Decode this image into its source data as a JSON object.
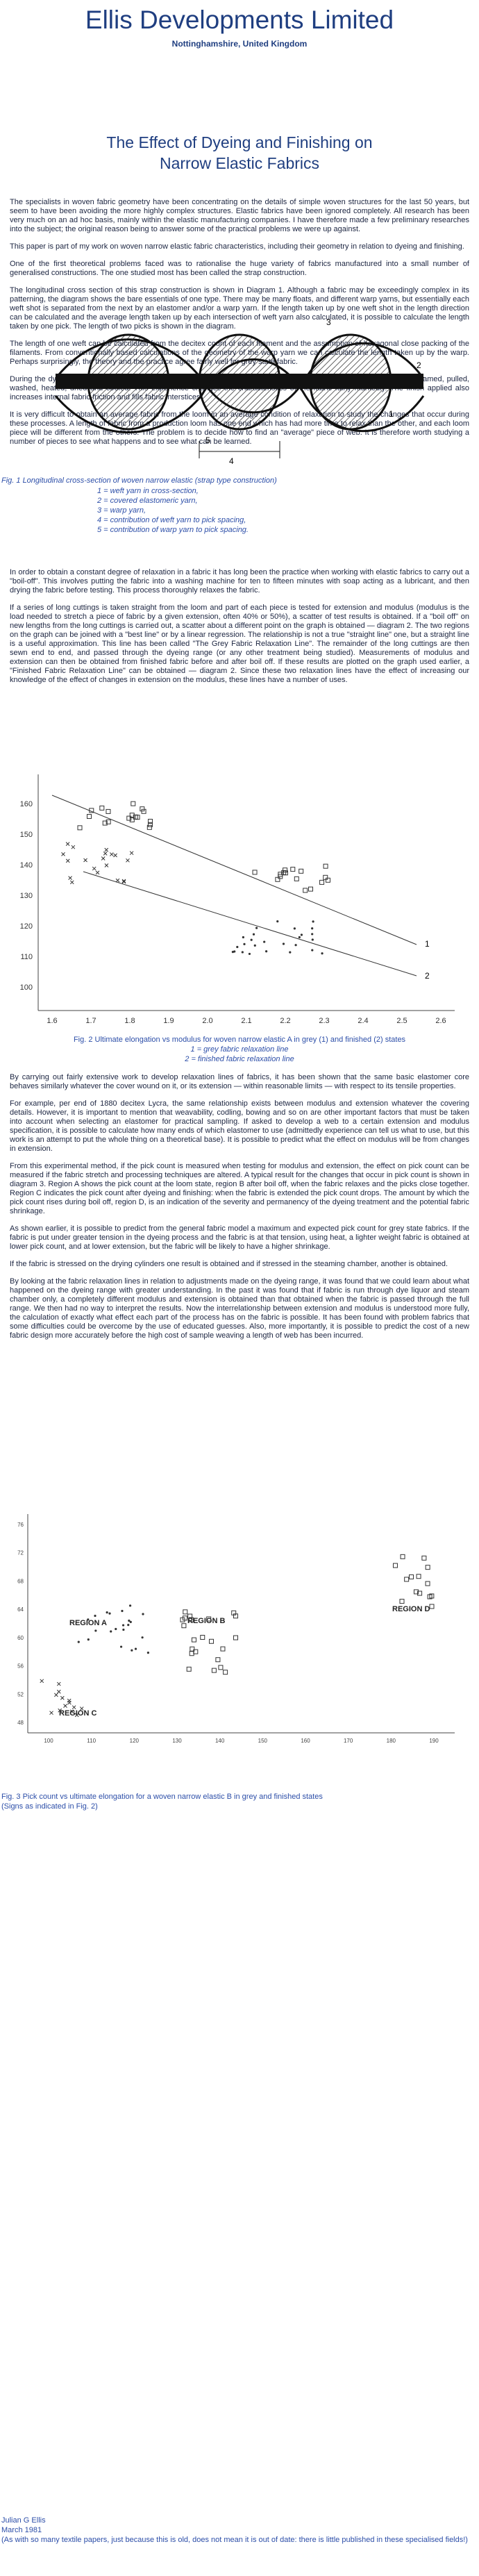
{
  "header": {
    "title": "Ellis Developments Limited",
    "subtitle": "Nottinghamshire, United Kingdom"
  },
  "paper_title": [
    "The Effect of Dyeing and Finishing on",
    "Narrow Elastic Fabrics"
  ],
  "sections": [
    [
      "The specialists in woven fabric geometry have been concentrating on the details of simple woven structures for the last 50 years, but seem to have been avoiding the more highly complex structures. Elastic fabrics have been ignored completely. All research has been very much on an ad hoc basis, mainly within the elastic manufacturing companies. I have therefore made a few preliminary researches into the subject; the original reason being to answer some of the practical problems we were up against.",
      "This paper is part of my work on woven narrow elastic fabric characteristics, including their geometry in relation to dyeing and finishing.",
      "One of the first theoretical problems faced was to rationalise the huge variety of fabrics manufactured into a small number of generalised constructions. The one studied most has been called the strap construction.",
      "The longitudinal cross section of this strap construction is shown in Diagram 1. Although a fabric may be exceedingly complex in its patterning, the diagram shows the bare essentials of one type. There may be many floats, and different warp yarns, but essentially each weft shot is separated from the next by an elastomer and/or a warp yarn. If the length taken up by one weft shot in the length direction can be calculated and the average length taken up by each intersection of weft yarn also calculated, it is possible to calculate the length taken by one pick. The length of two picks is shown in the diagram.",
      "The length of one weft can be calculated from the decitex count of each filament and the assumption of hexagonal close packing of the filaments. From conventionally based calculations of the geometry of the warp yarn we can calculate the length taken up by the warp. Perhaps surprisingly, the theory and the practice agree fairly well for grey state fabric.",
      "During the dyeing and finishing process the fabric is subjected to fairly severe processing conditions. It is squeezed, steamed, pulled, washed, heated, dried and cooled. This experience changes the characteristics of the fabric fairly markedly. The finish applied also increases internal fabric friction and fills fabric interstices.",
      "It is very difficult to obtain an average fabric from the loom in an average condition of relaxation to study the changes that occur during these processes. A length of fabric from a production loom has one end which has had more time to relax than the other, and each loom piece will be different from the others. The problem is to decide how to find an \"average\" piece of web. It is therefore worth studying a number of pieces to see what happens and to see what can be learned."
    ],
    [
      "In order to obtain a constant degree of relaxation in a fabric it has long been the practice when working with elastic fabrics to carry out a \"boil-off\". This involves putting the fabric into a washing machine for ten to fifteen minutes with soap acting as a lubricant, and then drying the fabric before testing. This process thoroughly relaxes the fabric.",
      "If a series of long cuttings is taken straight from the loom and part of each piece is tested for extension and modulus (modulus is the load needed to stretch a piece of fabric by a given extension, often 40% or 50%), a scatter of test results is obtained. If a \"boil off\" on new lengths from the long cuttings is carried out, a scatter about a different point on the graph is obtained — diagram 2. The two regions on the graph can be joined with a \"best line\" or by a linear regression. The relationship is not a true \"straight line\" one, but a straight line is a useful approximation. This line has been called \"The Grey Fabric Relaxation Line\". The remainder of the long cuttings are then sewn end to end, and passed through the dyeing range (or any other treatment being studied). Measurements of modulus and extension can then be obtained from finished fabric before and after boil off. If these results are plotted on the graph used earlier, a \"Finished Fabric Relaxation Line\" can be obtained — diagram 2. Since these two relaxation lines have the effect of increasing our knowledge of the effect of changes in extension on the modulus, these lines have a number of uses."
    ],
    [
      "By carrying out fairly extensive work to develop relaxation lines of fabrics, it has been shown that the same basic elastomer core behaves similarly whatever the cover wound on it, or its extension — within reasonable limits — with respect to its tensile properties.",
      "For example, per end of 1880 decitex Lycra, the same relationship exists between modulus and extension whatever the covering details. However, it is important to mention that weavability, codling, bowing and so on are other important factors that must be taken into account when selecting an elastomer for practical sampling. If asked to develop a web to a certain extension and modulus specification, it is possible to calculate how many ends of which elastomer to use (admittedly experience can tell us what to use, but this work is an attempt to put the whole thing on a theoretical base). It is possible to predict what the effect on modulus will be from changes in extension.",
      "From this experimental method, if the pick count is measured when testing for modulus and extension, the effect on pick count can be measured if the fabric stretch and processing techniques are altered. A typical result for the changes that occur in pick count is shown in diagram 3. Region A shows the pick count at the loom state, region B after boil off, when the fabric relaxes and the picks close together. Region C indicates the pick count after dyeing and finishing: when the fabric is extended the pick count drops. The amount by which the pick count rises during boil off, region D, is an indication of the severity and permanency of the dyeing treatment and the potential fabric shrinkage.",
      "As shown earlier, it is possible to predict from the general fabric model a maximum and expected pick count for grey state fabrics. If the fabric is put under greater tension in the dyeing process and the fabric is at that tension, using heat, a lighter weight fabric is obtained at lower pick count, and at lower extension, but the fabric will be likely to have a higher shrinkage.",
      "If the fabric is stressed on the drying cylinders one result is obtained and if stressed in the steaming chamber, another is obtained.",
      "By looking at the fabric relaxation lines in relation to adjustments made on the dyeing range, it was found that we could learn about what happened on the dyeing range with greater understanding. In the past it was found that if fabric is run through dye liquor and steam chamber only, a completely different modulus and extension is obtained than that obtained when the fabric is passed through the full range. We then had no way to interpret the results. Now the interrelationship between extension and modulus is understood more fully, the calculation of exactly what effect each part of the process has on the fabric is possible. It has been found with problem fabrics that some difficulties could be overcome by the use of educated guesses. Also, more importantly, it is possible to predict the cost of a new fabric design more accurately before the high cost of sample weaving a length of web has been incurred."
    ]
  ],
  "figure1": {
    "labels": [
      "1",
      "2",
      "3",
      "4",
      "5"
    ],
    "caption": "Fig. 1 Longitudinal cross-section of woven narrow elastic (strap type construction)",
    "legend": [
      "1 = weft yarn in cross-section,",
      "2 = covered elastomeric yarn,",
      "3 = warp yarn,",
      "4 = contribution of weft yarn to pick spacing,",
      "5 = contribution of warp yarn to pick spacing."
    ]
  },
  "figure2": {
    "yticks": [
      "160",
      "150",
      "140",
      "130",
      "120",
      "110",
      "100"
    ],
    "xticks": [
      "1.6",
      "1.7",
      "1.8",
      "1.9",
      "2.0",
      "2.1",
      "2.2",
      "2.3",
      "2.4",
      "2.5",
      "2.6"
    ],
    "line_labels": [
      "1",
      "2"
    ],
    "caption": "Fig. 2 Ultimate elongation vs modulus for woven narrow elastic A in grey (1) and finished (2) states",
    "legend": [
      "1 = grey fabric relaxation line",
      "2 = finished fabric relaxation line"
    ]
  },
  "figure3": {
    "yticks": [
      "76",
      "72",
      "68",
      "64",
      "60",
      "56",
      "52",
      "48"
    ],
    "xticks": [
      "100",
      "110",
      "120",
      "130",
      "140",
      "150",
      "160",
      "170",
      "180",
      "190"
    ],
    "regions": [
      "REGION A",
      "REGION B",
      "REGION C",
      "REGION D"
    ],
    "caption": [
      "Fig. 3 Pick count vs ultimate elongation for a woven narrow elastic B in grey and finished states",
      "(Signs as indicated in Fig. 2)"
    ]
  },
  "footer": {
    "author": "Julian G Ellis",
    "date": "March 1981",
    "note": "(As with so many textile papers, just because this is old, does not mean it is out of date: there is little published in these specialised fields!)"
  }
}
